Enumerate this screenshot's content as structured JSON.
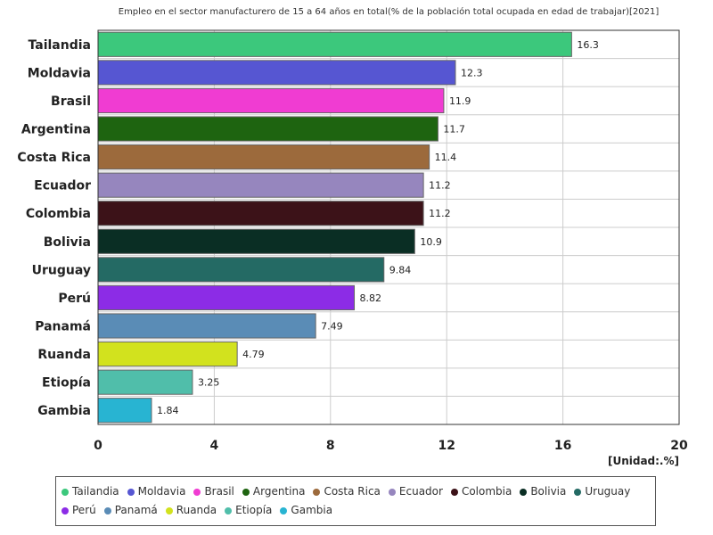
{
  "chart_data": {
    "type": "bar",
    "orientation": "horizontal",
    "title": "Empleo en el sector manufacturero de 15 a 64 años en total(% de la población total ocupada en edad de trabajar)[2021]",
    "unit_label": "[Unidad:.%]",
    "xlim": [
      0,
      20
    ],
    "xticks": [
      "0",
      "4",
      "8",
      "12",
      "16",
      "20"
    ],
    "grid": true,
    "legend_position": "bottom",
    "categories": [
      "Tailandia",
      "Moldavia",
      "Brasil",
      "Argentina",
      "Costa Rica",
      "Ecuador",
      "Colombia",
      "Bolivia",
      "Uruguay",
      "Perú",
      "Panamá",
      "Ruanda",
      "Etiopía",
      "Gambia"
    ],
    "values": [
      16.3,
      12.3,
      11.9,
      11.7,
      11.4,
      11.2,
      11.2,
      10.9,
      9.84,
      8.82,
      7.49,
      4.79,
      3.25,
      1.84
    ],
    "value_labels": [
      "16.3",
      "12.3",
      "11.9",
      "11.7",
      "11.4",
      "11.2",
      "11.2",
      "10.9",
      "9.84",
      "8.82",
      "7.49",
      "4.79",
      "3.25",
      "1.84"
    ],
    "colors": [
      "#3cc87c",
      "#5656d2",
      "#f03cd2",
      "#1e6410",
      "#9c6a3c",
      "#9686be",
      "#3c1218",
      "#0a2e24",
      "#246a64",
      "#8c2ce6",
      "#5a8cb6",
      "#d2e21e",
      "#50beaa",
      "#28b4d2"
    ]
  }
}
